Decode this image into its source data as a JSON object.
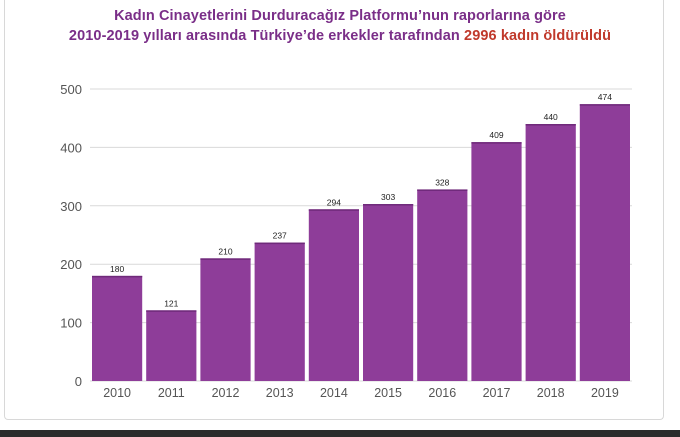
{
  "title": {
    "line1": "Kadın Cinayetlerini Durduracağız Platformu’nun raporlarına göre",
    "line2_prefix": "2010-2019 yılları arasında Türkiye’de erkekler tarafından",
    "line2_highlight": "2996 kadın öldürüldü"
  },
  "colors": {
    "bar": "#8e3d99",
    "title": "#7a2e88",
    "highlight": "#c0392b",
    "grid": "#d9d9d9",
    "axis_text": "#555555"
  },
  "chart_data": {
    "type": "bar",
    "categories": [
      "2010",
      "2011",
      "2012",
      "2013",
      "2014",
      "2015",
      "2016",
      "2017",
      "2018",
      "2019"
    ],
    "values": [
      180,
      121,
      210,
      237,
      294,
      303,
      328,
      409,
      440,
      474
    ],
    "title": "",
    "xlabel": "",
    "ylabel": "",
    "ylim": [
      0,
      500
    ],
    "yticks": [
      0,
      100,
      200,
      300,
      400,
      500
    ],
    "grid": true,
    "data_labels": true
  }
}
